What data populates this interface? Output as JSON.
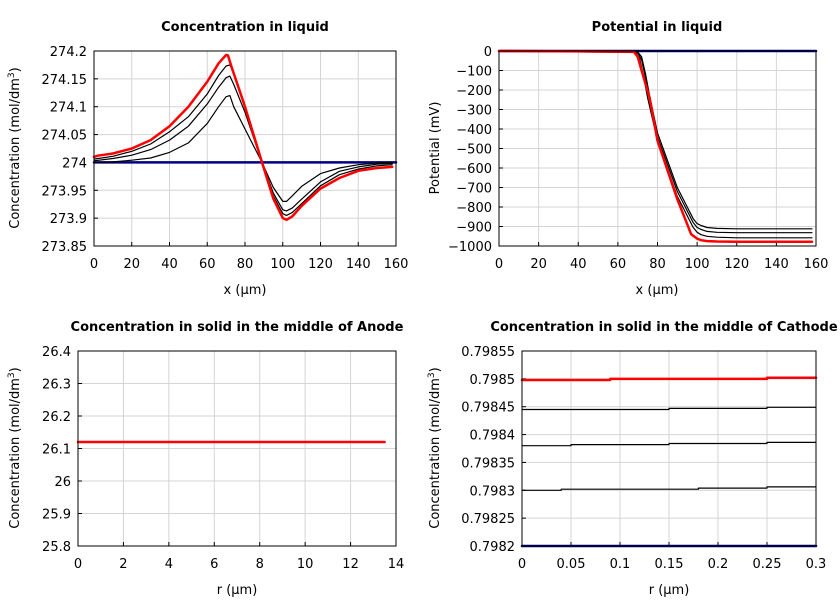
{
  "chart_data": [
    {
      "type": "line",
      "title": "Concentration in liquid",
      "xlabel": "x (µm)",
      "ylabel": "Concentration (mol/dm",
      "ylabel_sup": "3",
      "ylabel_tail": ")",
      "xlim": [
        0,
        160
      ],
      "ylim": [
        273.85,
        274.2
      ],
      "xticks": [
        0,
        20,
        40,
        60,
        80,
        100,
        120,
        140,
        160
      ],
      "yticks": [
        273.85,
        273.9,
        273.95,
        274,
        274.05,
        274.1,
        274.15,
        274.2
      ],
      "xtick_labels": [
        "0",
        "20",
        "40",
        "60",
        "80",
        "100",
        "120",
        "140",
        "160"
      ],
      "ytick_labels": [
        "273.85",
        "273.9",
        "273.95",
        "274",
        "274.05",
        "274.1",
        "274.15",
        "274.2"
      ],
      "grid": true,
      "series": [
        {
          "color": "#000080",
          "width": 2.5,
          "x": [
            0,
            160
          ],
          "y": [
            274.0,
            274.0
          ]
        },
        {
          "color": "#000000",
          "width": 1.2,
          "x": [
            0,
            10,
            20,
            30,
            40,
            50,
            60,
            66,
            70,
            72,
            74,
            80,
            89,
            95,
            100,
            102,
            105,
            110,
            120,
            130,
            140,
            150,
            158
          ],
          "y": [
            274.0,
            274.001,
            274.004,
            274.008,
            274.018,
            274.035,
            274.07,
            274.1,
            274.118,
            274.12,
            274.1,
            274.06,
            274.0,
            273.955,
            273.93,
            273.93,
            273.94,
            273.957,
            273.98,
            273.99,
            273.996,
            273.999,
            274.0
          ]
        },
        {
          "color": "#000000",
          "width": 1.2,
          "x": [
            0,
            10,
            20,
            30,
            40,
            50,
            60,
            66,
            70,
            72,
            74,
            80,
            89,
            95,
            100,
            102,
            105,
            110,
            120,
            130,
            140,
            150,
            158
          ],
          "y": [
            274.003,
            274.007,
            274.013,
            274.023,
            274.04,
            274.065,
            274.105,
            274.135,
            274.152,
            274.155,
            274.14,
            274.09,
            274.0,
            273.945,
            273.915,
            273.913,
            273.918,
            273.934,
            273.965,
            273.984,
            273.992,
            273.997,
            273.998
          ]
        },
        {
          "color": "#000000",
          "width": 1.2,
          "x": [
            0,
            10,
            20,
            30,
            40,
            50,
            60,
            66,
            70,
            72,
            74,
            80,
            89,
            95,
            100,
            102,
            105,
            110,
            120,
            130,
            140,
            150,
            158
          ],
          "y": [
            274.006,
            274.011,
            274.02,
            274.033,
            274.055,
            274.082,
            274.123,
            274.156,
            274.173,
            274.175,
            274.16,
            274.1,
            274.0,
            273.94,
            273.908,
            273.905,
            273.91,
            273.926,
            273.958,
            273.978,
            273.988,
            273.994,
            273.996
          ]
        },
        {
          "color": "#ff0000",
          "width": 2.5,
          "x": [
            0,
            2,
            10,
            20,
            30,
            40,
            50,
            60,
            66,
            70,
            71,
            73,
            80,
            89,
            95,
            100,
            102,
            105,
            110,
            120,
            130,
            140,
            150,
            158
          ],
          "y": [
            274.01,
            274.012,
            274.016,
            274.025,
            274.04,
            274.065,
            274.1,
            274.145,
            274.178,
            274.193,
            274.192,
            274.17,
            274.1,
            274.0,
            273.935,
            273.9,
            273.897,
            273.903,
            273.922,
            273.953,
            273.972,
            273.985,
            273.99,
            273.992
          ]
        }
      ]
    },
    {
      "type": "line",
      "title": "Potential in liquid",
      "xlabel": "x (µm)",
      "ylabel": "Potential (mV)",
      "xlim": [
        0,
        160
      ],
      "ylim": [
        -1000,
        0
      ],
      "xticks": [
        0,
        20,
        40,
        60,
        80,
        100,
        120,
        140,
        160
      ],
      "yticks": [
        -1000,
        -900,
        -800,
        -700,
        -600,
        -500,
        -400,
        -300,
        -200,
        -100,
        0
      ],
      "xtick_labels": [
        "0",
        "20",
        "40",
        "60",
        "80",
        "100",
        "120",
        "140",
        "160"
      ],
      "ytick_labels": [
        "−1000",
        "−900",
        "−800",
        "−700",
        "−600",
        "−500",
        "−400",
        "−300",
        "−200",
        "−100",
        "0"
      ],
      "grid": true,
      "series": [
        {
          "color": "#000080",
          "width": 2.5,
          "x": [
            0,
            160
          ],
          "y": [
            0,
            0
          ]
        },
        {
          "color": "#000000",
          "width": 1.2,
          "x": [
            0,
            70,
            72,
            74,
            76,
            80,
            90,
            98,
            100,
            102,
            105,
            110,
            120,
            140,
            158
          ],
          "y": [
            0,
            -5,
            -30,
            -120,
            -230,
            -420,
            -700,
            -860,
            -885,
            -895,
            -905,
            -910,
            -912,
            -912,
            -912
          ]
        },
        {
          "color": "#000000",
          "width": 1.2,
          "x": [
            0,
            70,
            72,
            74,
            76,
            80,
            90,
            98,
            100,
            102,
            105,
            110,
            120,
            140,
            158
          ],
          "y": [
            0,
            -8,
            -45,
            -140,
            -250,
            -440,
            -720,
            -880,
            -905,
            -915,
            -925,
            -930,
            -932,
            -932,
            -932
          ]
        },
        {
          "color": "#000000",
          "width": 1.2,
          "x": [
            0,
            69,
            71,
            73,
            75,
            80,
            90,
            98,
            100,
            102,
            105,
            110,
            120,
            140,
            158
          ],
          "y": [
            0,
            -5,
            -40,
            -130,
            -240,
            -460,
            -745,
            -905,
            -930,
            -942,
            -950,
            -955,
            -958,
            -958,
            -958
          ]
        },
        {
          "color": "#ff0000",
          "width": 2.5,
          "x": [
            0,
            68,
            70,
            72,
            74,
            76,
            80,
            90,
            97,
            100,
            102,
            105,
            110,
            120,
            140,
            158
          ],
          "y": [
            0,
            -3,
            -30,
            -100,
            -170,
            -240,
            -460,
            -760,
            -940,
            -962,
            -970,
            -975,
            -977,
            -978,
            -978,
            -978
          ]
        }
      ]
    },
    {
      "type": "line",
      "title": "Concentration in solid in the middle of Anode",
      "xlabel": "r (µm)",
      "ylabel": "Concentration (mol/dm",
      "ylabel_sup": "3",
      "ylabel_tail": ")",
      "xlim": [
        0,
        14
      ],
      "ylim": [
        25.8,
        26.4
      ],
      "xticks": [
        0,
        2,
        4,
        6,
        8,
        10,
        12,
        14
      ],
      "yticks": [
        25.8,
        25.9,
        26,
        26.1,
        26.2,
        26.3,
        26.4
      ],
      "xtick_labels": [
        "0",
        "2",
        "4",
        "6",
        "8",
        "10",
        "12",
        "14"
      ],
      "ytick_labels": [
        "25.8",
        "25.9",
        "26",
        "26.1",
        "26.2",
        "26.3",
        "26.4"
      ],
      "grid": true,
      "series": [
        {
          "color": "#ff0000",
          "width": 2.5,
          "x": [
            0,
            13.5
          ],
          "y": [
            26.12,
            26.12
          ]
        }
      ]
    },
    {
      "type": "line",
      "title": "Concentration in solid in the middle of Cathode",
      "xlabel": "r (µm)",
      "ylabel": "Concentration (mol/dm",
      "ylabel_sup": "3",
      "ylabel_tail": ")",
      "xlim": [
        0,
        0.3
      ],
      "ylim": [
        0.7982,
        0.79855
      ],
      "xticks": [
        0,
        0.05,
        0.1,
        0.15,
        0.2,
        0.25,
        0.3
      ],
      "yticks": [
        0.7982,
        0.79825,
        0.7983,
        0.79835,
        0.7984,
        0.79845,
        0.7985,
        0.79855
      ],
      "xtick_labels": [
        "0",
        "0.05",
        "0.1",
        "0.15",
        "0.2",
        "0.25",
        "0.3"
      ],
      "ytick_labels": [
        "0.7982",
        "0.79825",
        "0.7983",
        "0.79835",
        "0.7984",
        "0.79845",
        "0.7985",
        "0.79855"
      ],
      "grid": true,
      "series": [
        {
          "color": "#000080",
          "width": 2.5,
          "x": [
            0,
            0.3
          ],
          "y": [
            0.7982,
            0.7982
          ]
        },
        {
          "color": "#000000",
          "width": 1.2,
          "x": [
            0,
            0.04,
            0.04,
            0.18,
            0.18,
            0.25,
            0.25,
            0.3
          ],
          "y": [
            0.7983,
            0.7983,
            0.798302,
            0.798302,
            0.798304,
            0.798304,
            0.798306,
            0.798306
          ]
        },
        {
          "color": "#000000",
          "width": 1.2,
          "x": [
            0,
            0.05,
            0.05,
            0.15,
            0.15,
            0.25,
            0.25,
            0.3
          ],
          "y": [
            0.79838,
            0.79838,
            0.798382,
            0.798382,
            0.798384,
            0.798384,
            0.798386,
            0.798386
          ]
        },
        {
          "color": "#000000",
          "width": 1.2,
          "x": [
            0,
            0.15,
            0.15,
            0.25,
            0.25,
            0.3
          ],
          "y": [
            0.798445,
            0.798445,
            0.798447,
            0.798447,
            0.798449,
            0.798449
          ]
        },
        {
          "color": "#ff0000",
          "width": 2.5,
          "x": [
            0,
            0.09,
            0.09,
            0.25,
            0.25,
            0.3
          ],
          "y": [
            0.798498,
            0.798498,
            0.7985,
            0.7985,
            0.798502,
            0.798502
          ]
        }
      ]
    }
  ]
}
